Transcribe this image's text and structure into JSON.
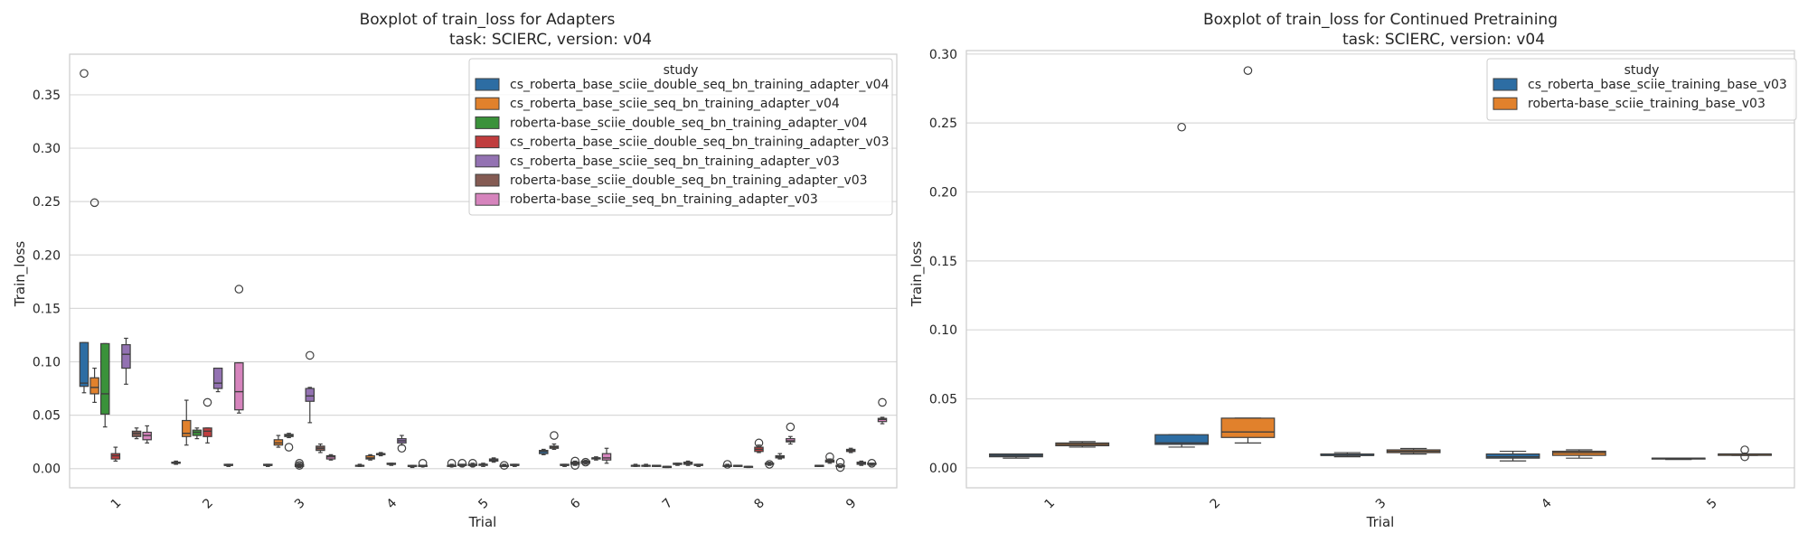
{
  "charts": [
    {
      "type": "box",
      "title": "Boxplot of train_loss for Adapters",
      "subtitle": "task: SCIERC, version: v04",
      "xlabel": "Trial",
      "ylabel": "Train_loss",
      "categories": [
        "1",
        "2",
        "3",
        "4",
        "5",
        "6",
        "7",
        "8",
        "9"
      ],
      "ylim": [
        -0.018,
        0.388
      ],
      "yticks": [
        0.0,
        0.05,
        0.1,
        0.15,
        0.2,
        0.25,
        0.3,
        0.35
      ],
      "ytick_labels": [
        "0.00",
        "0.05",
        "0.10",
        "0.15",
        "0.20",
        "0.25",
        "0.30",
        "0.35"
      ],
      "grid": true,
      "legend": {
        "title": "study",
        "placement": "top-right",
        "entries": [
          {
            "name": "cs_roberta_base_sciie_double_seq_bn_training_adapter_v04",
            "color": "#2d6da3"
          },
          {
            "name": "cs_roberta_base_sciie_seq_bn_training_adapter_v04",
            "color": "#e1812c"
          },
          {
            "name": "roberta-base_sciie_double_seq_bn_training_adapter_v04",
            "color": "#3a923a"
          },
          {
            "name": "cs_roberta_base_sciie_double_seq_bn_training_adapter_v03",
            "color": "#c03d3e"
          },
          {
            "name": "cs_roberta_base_sciie_seq_bn_training_adapter_v03",
            "color": "#9372b2"
          },
          {
            "name": "roberta-base_sciie_double_seq_bn_training_adapter_v03",
            "color": "#845b53"
          },
          {
            "name": "roberta-base_sciie_seq_bn_training_adapter_v03",
            "color": "#d684bd"
          }
        ]
      },
      "boxes": [
        {
          "cat": 0,
          "series": 0,
          "stats": [
            0.071,
            0.077,
            0.08,
            0.118,
            0.118
          ],
          "outliers": [
            0.37
          ]
        },
        {
          "cat": 0,
          "series": 1,
          "stats": [
            0.062,
            0.07,
            0.076,
            0.085,
            0.094
          ],
          "outliers": [
            0.249
          ]
        },
        {
          "cat": 0,
          "series": 2,
          "stats": [
            0.039,
            0.051,
            0.07,
            0.117,
            0.117
          ],
          "outliers": []
        },
        {
          "cat": 0,
          "series": 3,
          "stats": [
            0.007,
            0.009,
            0.012,
            0.014,
            0.02
          ],
          "outliers": []
        },
        {
          "cat": 0,
          "series": 4,
          "stats": [
            0.079,
            0.094,
            0.107,
            0.116,
            0.122
          ],
          "outliers": []
        },
        {
          "cat": 0,
          "series": 5,
          "stats": [
            0.028,
            0.03,
            0.033,
            0.035,
            0.038
          ],
          "outliers": []
        },
        {
          "cat": 0,
          "series": 6,
          "stats": [
            0.024,
            0.027,
            0.031,
            0.034,
            0.04
          ],
          "outliers": []
        },
        {
          "cat": 1,
          "series": 0,
          "stats": [
            0.004,
            0.005,
            0.005,
            0.006,
            0.007
          ],
          "outliers": []
        },
        {
          "cat": 1,
          "series": 1,
          "stats": [
            0.022,
            0.03,
            0.033,
            0.045,
            0.064
          ],
          "outliers": []
        },
        {
          "cat": 1,
          "series": 2,
          "stats": [
            0.028,
            0.031,
            0.034,
            0.036,
            0.038
          ],
          "outliers": []
        },
        {
          "cat": 1,
          "series": 3,
          "stats": [
            0.024,
            0.03,
            0.035,
            0.038,
            0.038
          ],
          "outliers": [
            0.062
          ]
        },
        {
          "cat": 1,
          "series": 4,
          "stats": [
            0.072,
            0.075,
            0.08,
            0.094,
            0.094
          ],
          "outliers": []
        },
        {
          "cat": 1,
          "series": 5,
          "stats": [
            0.002,
            0.003,
            0.003,
            0.004,
            0.004
          ],
          "outliers": []
        },
        {
          "cat": 1,
          "series": 6,
          "stats": [
            0.052,
            0.055,
            0.072,
            0.099,
            0.099
          ],
          "outliers": [
            0.168
          ]
        },
        {
          "cat": 2,
          "series": 0,
          "stats": [
            0.002,
            0.003,
            0.003,
            0.004,
            0.004
          ],
          "outliers": []
        },
        {
          "cat": 2,
          "series": 1,
          "stats": [
            0.02,
            0.022,
            0.024,
            0.027,
            0.031
          ],
          "outliers": []
        },
        {
          "cat": 2,
          "series": 2,
          "stats": [
            0.029,
            0.03,
            0.031,
            0.032,
            0.033
          ],
          "outliers": [
            0.02
          ]
        },
        {
          "cat": 2,
          "series": 3,
          "stats": [
            0.001,
            0.002,
            0.003,
            0.004,
            0.005
          ],
          "outliers": [
            0.003,
            0.005
          ]
        },
        {
          "cat": 2,
          "series": 4,
          "stats": [
            0.043,
            0.063,
            0.068,
            0.075,
            0.076
          ],
          "outliers": [
            0.106
          ]
        },
        {
          "cat": 2,
          "series": 5,
          "stats": [
            0.015,
            0.017,
            0.019,
            0.021,
            0.023
          ],
          "outliers": []
        },
        {
          "cat": 2,
          "series": 6,
          "stats": [
            0.008,
            0.009,
            0.011,
            0.012,
            0.013
          ],
          "outliers": []
        },
        {
          "cat": 3,
          "series": 0,
          "stats": [
            0.002,
            0.003,
            0.003,
            0.003,
            0.004
          ],
          "outliers": []
        },
        {
          "cat": 3,
          "series": 1,
          "stats": [
            0.008,
            0.009,
            0.01,
            0.012,
            0.013
          ],
          "outliers": []
        },
        {
          "cat": 3,
          "series": 2,
          "stats": [
            0.012,
            0.013,
            0.014,
            0.014,
            0.015
          ],
          "outliers": []
        },
        {
          "cat": 3,
          "series": 3,
          "stats": [
            0.003,
            0.004,
            0.004,
            0.005,
            0.005
          ],
          "outliers": []
        },
        {
          "cat": 3,
          "series": 4,
          "stats": [
            0.022,
            0.024,
            0.026,
            0.028,
            0.031
          ],
          "outliers": [
            0.019
          ]
        },
        {
          "cat": 3,
          "series": 5,
          "stats": [
            0.001,
            0.002,
            0.002,
            0.003,
            0.003
          ],
          "outliers": []
        },
        {
          "cat": 3,
          "series": 6,
          "stats": [
            0.002,
            0.002,
            0.003,
            0.003,
            0.003
          ],
          "outliers": [
            0.005
          ]
        },
        {
          "cat": 4,
          "series": 0,
          "stats": [
            0.002,
            0.002,
            0.003,
            0.003,
            0.004
          ],
          "outliers": [
            0.005
          ]
        },
        {
          "cat": 4,
          "series": 1,
          "stats": [
            0.002,
            0.003,
            0.003,
            0.004,
            0.004
          ],
          "outliers": [
            0.005
          ]
        },
        {
          "cat": 4,
          "series": 2,
          "stats": [
            0.002,
            0.003,
            0.003,
            0.004,
            0.005
          ],
          "outliers": [
            0.005
          ]
        },
        {
          "cat": 4,
          "series": 3,
          "stats": [
            0.002,
            0.003,
            0.004,
            0.004,
            0.005
          ],
          "outliers": []
        },
        {
          "cat": 4,
          "series": 4,
          "stats": [
            0.006,
            0.007,
            0.008,
            0.009,
            0.01
          ],
          "outliers": []
        },
        {
          "cat": 4,
          "series": 5,
          "stats": [
            0.002,
            0.002,
            0.003,
            0.003,
            0.004
          ],
          "outliers": [
            0.003
          ]
        },
        {
          "cat": 4,
          "series": 6,
          "stats": [
            0.002,
            0.003,
            0.003,
            0.004,
            0.004
          ],
          "outliers": []
        },
        {
          "cat": 5,
          "series": 0,
          "stats": [
            0.013,
            0.014,
            0.016,
            0.017,
            0.018
          ],
          "outliers": []
        },
        {
          "cat": 5,
          "series": 1,
          "stats": [
            0.018,
            0.019,
            0.02,
            0.021,
            0.023
          ],
          "outliers": [
            0.031
          ]
        },
        {
          "cat": 5,
          "series": 2,
          "stats": [
            0.002,
            0.003,
            0.003,
            0.004,
            0.004
          ],
          "outliers": []
        },
        {
          "cat": 5,
          "series": 3,
          "stats": [
            0.003,
            0.004,
            0.005,
            0.006,
            0.007
          ],
          "outliers": [
            0.007,
            0.003
          ]
        },
        {
          "cat": 5,
          "series": 4,
          "stats": [
            0.004,
            0.005,
            0.006,
            0.007,
            0.008
          ],
          "outliers": [
            0.006
          ]
        },
        {
          "cat": 5,
          "series": 5,
          "stats": [
            0.008,
            0.009,
            0.01,
            0.01,
            0.011
          ],
          "outliers": []
        },
        {
          "cat": 5,
          "series": 6,
          "stats": [
            0.005,
            0.008,
            0.01,
            0.014,
            0.019
          ],
          "outliers": []
        },
        {
          "cat": 6,
          "series": 0,
          "stats": [
            0.002,
            0.003,
            0.003,
            0.003,
            0.004
          ],
          "outliers": []
        },
        {
          "cat": 6,
          "series": 1,
          "stats": [
            0.002,
            0.003,
            0.003,
            0.003,
            0.004
          ],
          "outliers": []
        },
        {
          "cat": 6,
          "series": 2,
          "stats": [
            0.002,
            0.002,
            0.003,
            0.003,
            0.003
          ],
          "outliers": []
        },
        {
          "cat": 6,
          "series": 3,
          "stats": [
            0.001,
            0.001,
            0.002,
            0.002,
            0.002
          ],
          "outliers": []
        },
        {
          "cat": 6,
          "series": 4,
          "stats": [
            0.003,
            0.004,
            0.004,
            0.005,
            0.005
          ],
          "outliers": []
        },
        {
          "cat": 6,
          "series": 5,
          "stats": [
            0.003,
            0.004,
            0.005,
            0.006,
            0.007
          ],
          "outliers": []
        },
        {
          "cat": 6,
          "series": 6,
          "stats": [
            0.002,
            0.003,
            0.003,
            0.004,
            0.004
          ],
          "outliers": []
        },
        {
          "cat": 7,
          "series": 0,
          "stats": [
            0.002,
            0.002,
            0.003,
            0.003,
            0.004
          ],
          "outliers": [
            0.004
          ]
        },
        {
          "cat": 7,
          "series": 1,
          "stats": [
            0.002,
            0.002,
            0.003,
            0.003,
            0.003
          ],
          "outliers": []
        },
        {
          "cat": 7,
          "series": 2,
          "stats": [
            0.001,
            0.002,
            0.002,
            0.002,
            0.002
          ],
          "outliers": []
        },
        {
          "cat": 7,
          "series": 3,
          "stats": [
            0.015,
            0.016,
            0.018,
            0.02,
            0.022
          ],
          "outliers": [
            0.024
          ]
        },
        {
          "cat": 7,
          "series": 4,
          "stats": [
            0.003,
            0.004,
            0.004,
            0.005,
            0.006
          ],
          "outliers": [
            0.004
          ]
        },
        {
          "cat": 7,
          "series": 5,
          "stats": [
            0.009,
            0.01,
            0.011,
            0.012,
            0.014
          ],
          "outliers": []
        },
        {
          "cat": 7,
          "series": 6,
          "stats": [
            0.023,
            0.025,
            0.026,
            0.028,
            0.03
          ],
          "outliers": [
            0.039
          ]
        },
        {
          "cat": 8,
          "series": 0,
          "stats": [
            0.002,
            0.002,
            0.003,
            0.003,
            0.003
          ],
          "outliers": []
        },
        {
          "cat": 8,
          "series": 1,
          "stats": [
            0.005,
            0.006,
            0.007,
            0.008,
            0.009
          ],
          "outliers": [
            0.011
          ]
        },
        {
          "cat": 8,
          "series": 2,
          "stats": [
            0.001,
            0.002,
            0.002,
            0.003,
            0.003
          ],
          "outliers": [
            0.001,
            0.006
          ]
        },
        {
          "cat": 8,
          "series": 3,
          "stats": [
            0.015,
            0.016,
            0.017,
            0.018,
            0.019
          ],
          "outliers": []
        },
        {
          "cat": 8,
          "series": 4,
          "stats": [
            0.003,
            0.004,
            0.005,
            0.006,
            0.007
          ],
          "outliers": []
        },
        {
          "cat": 8,
          "series": 5,
          "stats": [
            0.003,
            0.004,
            0.004,
            0.005,
            0.005
          ],
          "outliers": [
            0.005
          ]
        },
        {
          "cat": 8,
          "series": 6,
          "stats": [
            0.042,
            0.044,
            0.046,
            0.047,
            0.048
          ],
          "outliers": [
            0.062
          ]
        }
      ]
    },
    {
      "type": "box",
      "title": "Boxplot of train_loss for Continued Pretraining",
      "subtitle": "task: SCIERC, version: v04",
      "xlabel": "Trial",
      "ylabel": "Train_loss",
      "categories": [
        "1",
        "2",
        "3",
        "4",
        "5"
      ],
      "ylim": [
        -0.0145,
        0.3025
      ],
      "yticks": [
        0.0,
        0.05,
        0.1,
        0.15,
        0.2,
        0.25,
        0.3
      ],
      "ytick_labels": [
        "0.00",
        "0.05",
        "0.10",
        "0.15",
        "0.20",
        "0.25",
        "0.30"
      ],
      "grid": true,
      "legend": {
        "title": "study",
        "placement": "top-right",
        "entries": [
          {
            "name": "cs_roberta_base_sciie_training_base_v03",
            "color": "#2d6da3"
          },
          {
            "name": "roberta-base_sciie_training_base_v03",
            "color": "#e1812c"
          }
        ]
      },
      "boxes": [
        {
          "cat": 0,
          "series": 0,
          "stats": [
            0.007,
            0.008,
            0.009,
            0.01,
            0.01
          ],
          "outliers": []
        },
        {
          "cat": 0,
          "series": 1,
          "stats": [
            0.015,
            0.016,
            0.017,
            0.018,
            0.019
          ],
          "outliers": []
        },
        {
          "cat": 1,
          "series": 0,
          "stats": [
            0.015,
            0.017,
            0.018,
            0.024,
            0.024
          ],
          "outliers": [
            0.247
          ]
        },
        {
          "cat": 1,
          "series": 1,
          "stats": [
            0.018,
            0.022,
            0.026,
            0.036,
            0.036
          ],
          "outliers": [
            0.288
          ]
        },
        {
          "cat": 2,
          "series": 0,
          "stats": [
            0.008,
            0.009,
            0.009,
            0.01,
            0.011
          ],
          "outliers": []
        },
        {
          "cat": 2,
          "series": 1,
          "stats": [
            0.01,
            0.011,
            0.012,
            0.013,
            0.014
          ],
          "outliers": []
        },
        {
          "cat": 3,
          "series": 0,
          "stats": [
            0.005,
            0.007,
            0.008,
            0.01,
            0.012
          ],
          "outliers": []
        },
        {
          "cat": 3,
          "series": 1,
          "stats": [
            0.007,
            0.009,
            0.011,
            0.012,
            0.013
          ],
          "outliers": []
        },
        {
          "cat": 4,
          "series": 0,
          "stats": [
            0.006,
            0.007,
            0.007,
            0.007,
            0.007
          ],
          "outliers": []
        },
        {
          "cat": 4,
          "series": 1,
          "stats": [
            0.009,
            0.009,
            0.01,
            0.01,
            0.01
          ],
          "outliers": [
            0.008,
            0.013
          ]
        }
      ]
    }
  ]
}
